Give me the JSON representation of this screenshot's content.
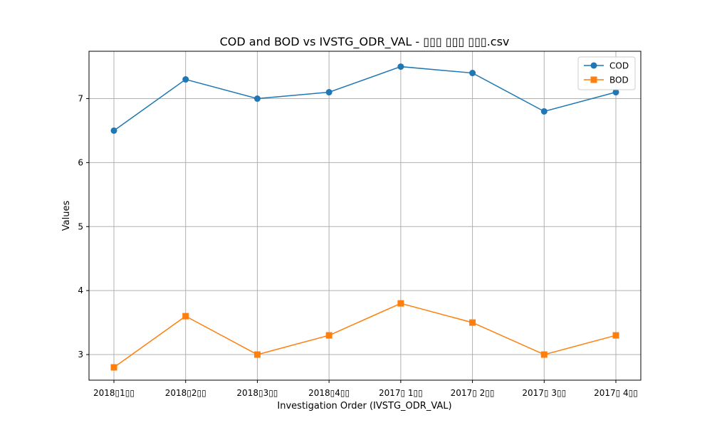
{
  "chart_data": {
    "type": "line",
    "title": "COD and BOD vs IVSTG_ODR_VAL - ▯▯▯ ▯▯▯ ▯▯▯.csv",
    "xlabel": "Investigation Order (IVSTG_ODR_VAL)",
    "ylabel": "Values",
    "categories": [
      "2018▯1▯▯",
      "2018▯2▯▯",
      "2018▯3▯▯",
      "2018▯4▯▯",
      "2017▯ 1▯▯",
      "2017▯ 2▯▯",
      "2017▯ 3▯▯",
      "2017▯ 4▯▯"
    ],
    "ylim": [
      2.6,
      7.74
    ],
    "yticks": [
      3,
      4,
      5,
      6,
      7
    ],
    "grid": true,
    "legend": "top-right",
    "series": [
      {
        "name": "COD",
        "color": "#1f77b4",
        "marker": "circle",
        "values": [
          6.5,
          7.3,
          7.0,
          7.1,
          7.5,
          7.4,
          6.8,
          7.1
        ]
      },
      {
        "name": "BOD",
        "color": "#ff7f0e",
        "marker": "square",
        "values": [
          2.8,
          3.6,
          3.0,
          3.3,
          3.8,
          3.5,
          3.0,
          3.3
        ]
      }
    ]
  }
}
